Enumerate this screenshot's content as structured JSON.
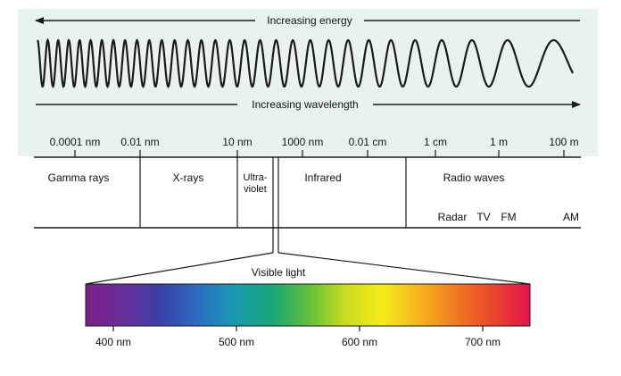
{
  "energy_label": "Increasing energy",
  "wavelength_label": "Increasing wavelength",
  "scale_ticks": [
    "0.0001 nm",
    "0.01 nm",
    "10 nm",
    "1000 nm",
    "0.01 cm",
    "1 cm",
    "1 m",
    "100 m"
  ],
  "bands": {
    "gamma": "Gamma rays",
    "xrays": "X-rays",
    "uv_line1": "Ultra-",
    "uv_line2": "violet",
    "infrared": "Infrared",
    "radio": "Radio waves"
  },
  "radio_subbands": [
    "Radar",
    "TV",
    "FM",
    "AM"
  ],
  "visible": {
    "label": "Visible light",
    "ticks": [
      "400 nm",
      "500 nm",
      "600 nm",
      "700 nm"
    ]
  },
  "colors": {
    "panel": "#e8f3f1",
    "line": "#1a1a1a",
    "spectrum": [
      "#7a1f86",
      "#6a2f9a",
      "#3b3fa6",
      "#2c6cc2",
      "#1a98b3",
      "#17a57a",
      "#5fbf3a",
      "#c9dc20",
      "#f4ec1a",
      "#f6b51c",
      "#f07a22",
      "#e8452c",
      "#e2164c"
    ]
  }
}
